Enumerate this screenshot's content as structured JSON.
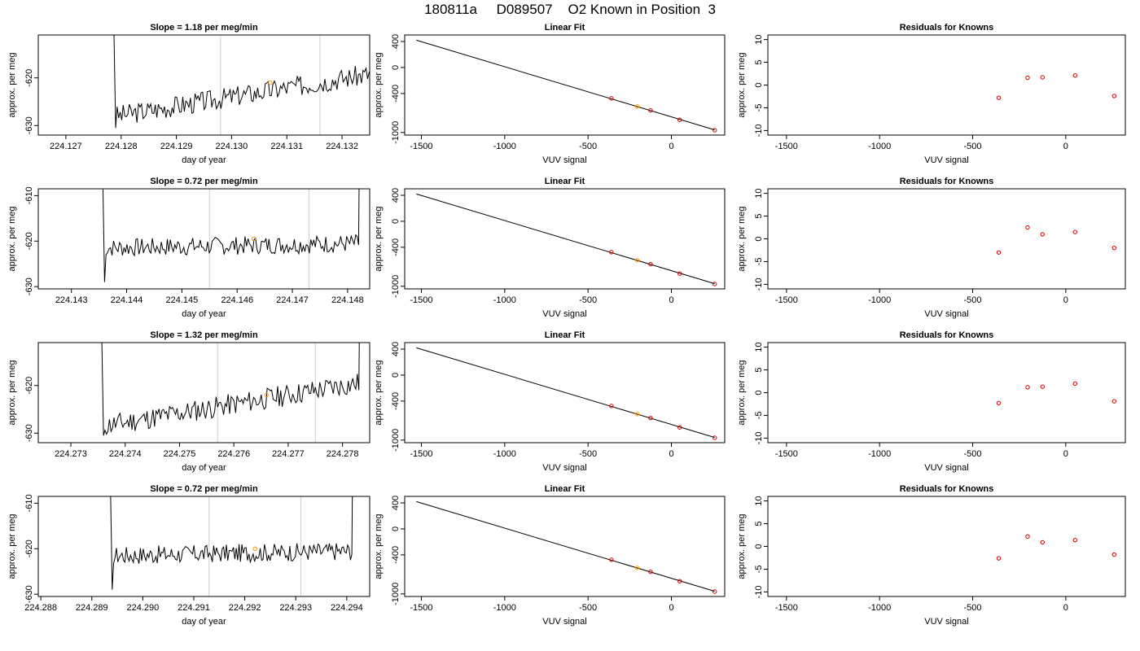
{
  "page": {
    "title": "180811a     D089507    O2 Known in Position  3",
    "colors": {
      "trace": "#000000",
      "gridline": "#cccccc",
      "highlight": "#ff9900",
      "known": "#cc0000"
    }
  },
  "chart_data": [
    {
      "type": "line",
      "title": "Slope =  1.18  per meg/min",
      "xlabel": "day of year",
      "ylabel": "approx. per meg",
      "xlim": [
        224.1265,
        224.1325
      ],
      "xticks": [
        "224.127",
        "224.128",
        "224.129",
        "224.130",
        "224.131",
        "224.132"
      ],
      "ylim": [
        -632,
        -611
      ],
      "yticks": [
        "-630",
        "-620"
      ],
      "trace": {
        "start": 224.1279,
        "end": 224.1326,
        "base_start": -628,
        "base_end": -619,
        "amp": 2.2,
        "seed": 3
      },
      "vlines": [
        224.1298,
        224.1316
      ],
      "marker": {
        "x": 224.1307,
        "y": -621
      }
    },
    {
      "type": "scatter",
      "title": "Linear Fit",
      "xlabel": "VUV signal",
      "ylabel": "approx. per meg",
      "xlim": [
        -1600,
        320
      ],
      "xticks": [
        -1500,
        -1000,
        -500,
        0
      ],
      "ylim": [
        -1040,
        500
      ],
      "yticks": [
        400,
        0,
        -400,
        -1000
      ],
      "fit_line": {
        "x": [
          -1530,
          260
        ],
        "y": [
          420,
          -960
        ]
      },
      "points": [
        {
          "x": -360,
          "y": -475
        },
        {
          "x": -205,
          "y": -600,
          "highlight": true
        },
        {
          "x": -125,
          "y": -660
        },
        {
          "x": 50,
          "y": -805
        },
        {
          "x": 260,
          "y": -965
        }
      ]
    },
    {
      "type": "scatter",
      "title": "Residuals for Knowns",
      "xlabel": "VUV signal",
      "ylabel": "approx. per meg",
      "xlim": [
        -1600,
        320
      ],
      "xticks": [
        -1500,
        -1000,
        -500,
        0
      ],
      "ylim": [
        -11,
        11
      ],
      "yticks": [
        10,
        5,
        0,
        -5,
        -10
      ],
      "points": [
        {
          "x": -360,
          "y": -2.8
        },
        {
          "x": -205,
          "y": 1.6
        },
        {
          "x": -125,
          "y": 1.7
        },
        {
          "x": 50,
          "y": 2.1
        },
        {
          "x": 260,
          "y": -2.4
        }
      ]
    },
    {
      "type": "line",
      "title": "Slope =  0.72  per meg/min",
      "xlabel": "day of year",
      "ylabel": "approx. per meg",
      "xlim": [
        224.1424,
        224.1484
      ],
      "xticks": [
        "224.143",
        "224.144",
        "224.145",
        "224.146",
        "224.147",
        "224.148"
      ],
      "ylim": [
        -630.5,
        -608.5
      ],
      "yticks": [
        "-610",
        "-620",
        "-630"
      ],
      "trace": {
        "start": 224.1436,
        "end": 224.1482,
        "base_start": -621.5,
        "base_end": -620.5,
        "amp": 2.0,
        "seed": 7
      },
      "vlines": [
        224.1455,
        224.1473
      ],
      "marker": {
        "x": 224.1463,
        "y": -619.5
      }
    },
    {
      "type": "scatter",
      "title": "Linear Fit",
      "xlabel": "VUV signal",
      "ylabel": "approx. per meg",
      "xlim": [
        -1600,
        320
      ],
      "xticks": [
        -1500,
        -1000,
        -500,
        0
      ],
      "ylim": [
        -1040,
        500
      ],
      "yticks": [
        400,
        0,
        -400,
        -1000
      ],
      "fit_line": {
        "x": [
          -1530,
          260
        ],
        "y": [
          420,
          -960
        ]
      },
      "points": [
        {
          "x": -360,
          "y": -475
        },
        {
          "x": -205,
          "y": -600,
          "highlight": true
        },
        {
          "x": -125,
          "y": -660
        },
        {
          "x": 50,
          "y": -805
        },
        {
          "x": 260,
          "y": -965
        }
      ]
    },
    {
      "type": "scatter",
      "title": "Residuals for Knowns",
      "xlabel": "VUV signal",
      "ylabel": "approx. per meg",
      "xlim": [
        -1600,
        320
      ],
      "xticks": [
        -1500,
        -1000,
        -500,
        0
      ],
      "ylim": [
        -11,
        11
      ],
      "yticks": [
        10,
        5,
        0,
        -5,
        -10
      ],
      "points": [
        {
          "x": -360,
          "y": -3.0
        },
        {
          "x": -205,
          "y": 2.5
        },
        {
          "x": -125,
          "y": 1.0
        },
        {
          "x": 50,
          "y": 1.5
        },
        {
          "x": 260,
          "y": -2.0
        }
      ]
    },
    {
      "type": "line",
      "title": "Slope =  1.32  per meg/min",
      "xlabel": "day of year",
      "ylabel": "approx. per meg",
      "xlim": [
        224.2724,
        224.2785
      ],
      "xticks": [
        "224.273",
        "224.274",
        "224.275",
        "224.276",
        "224.277",
        "224.278"
      ],
      "ylim": [
        -632,
        -611
      ],
      "yticks": [
        "-630",
        "-620"
      ],
      "trace": {
        "start": 224.2736,
        "end": 224.2783,
        "base_start": -628.5,
        "base_end": -619.5,
        "amp": 2.3,
        "seed": 11
      },
      "vlines": [
        224.2757,
        224.2775
      ],
      "marker": {
        "x": 224.2766,
        "y": -622
      }
    },
    {
      "type": "scatter",
      "title": "Linear Fit",
      "xlabel": "VUV signal",
      "ylabel": "approx. per meg",
      "xlim": [
        -1600,
        320
      ],
      "xticks": [
        -1500,
        -1000,
        -500,
        0
      ],
      "ylim": [
        -1040,
        500
      ],
      "yticks": [
        400,
        0,
        -400,
        -1000
      ],
      "fit_line": {
        "x": [
          -1530,
          260
        ],
        "y": [
          420,
          -960
        ]
      },
      "points": [
        {
          "x": -360,
          "y": -475
        },
        {
          "x": -205,
          "y": -600,
          "highlight": true
        },
        {
          "x": -125,
          "y": -660
        },
        {
          "x": 50,
          "y": -805
        },
        {
          "x": 260,
          "y": -965
        }
      ]
    },
    {
      "type": "scatter",
      "title": "Residuals for Knowns",
      "xlabel": "VUV signal",
      "ylabel": "approx. per meg",
      "xlim": [
        -1600,
        320
      ],
      "xticks": [
        -1500,
        -1000,
        -500,
        0
      ],
      "ylim": [
        -11,
        11
      ],
      "yticks": [
        10,
        5,
        0,
        -5,
        -10
      ],
      "points": [
        {
          "x": -360,
          "y": -2.3
        },
        {
          "x": -205,
          "y": 1.2
        },
        {
          "x": -125,
          "y": 1.3
        },
        {
          "x": 50,
          "y": 2.0
        },
        {
          "x": 260,
          "y": -1.9
        }
      ]
    },
    {
      "type": "line",
      "title": "Slope =  0.72  per meg/min",
      "xlabel": "day of year",
      "ylabel": "approx. per meg",
      "xlim": [
        224.28795,
        224.29445
      ],
      "xticks": [
        "224.288",
        "224.289",
        "224.290",
        "224.291",
        "224.292",
        "224.293",
        "224.294"
      ],
      "ylim": [
        -630.5,
        -608.5
      ],
      "yticks": [
        "-610",
        "-620",
        "-630"
      ],
      "trace": {
        "start": 224.2894,
        "end": 224.2941,
        "base_start": -621.5,
        "base_end": -620.5,
        "amp": 2.0,
        "seed": 17
      },
      "vlines": [
        224.2913,
        224.2931
      ],
      "marker": {
        "x": 224.2922,
        "y": -620
      }
    },
    {
      "type": "scatter",
      "title": "Linear Fit",
      "xlabel": "VUV signal",
      "ylabel": "approx. per meg",
      "xlim": [
        -1600,
        320
      ],
      "xticks": [
        -1500,
        -1000,
        -500,
        0
      ],
      "ylim": [
        -1040,
        500
      ],
      "yticks": [
        400,
        0,
        -400,
        -1000
      ],
      "fit_line": {
        "x": [
          -1530,
          260
        ],
        "y": [
          420,
          -960
        ]
      },
      "points": [
        {
          "x": -360,
          "y": -475
        },
        {
          "x": -205,
          "y": -600,
          "highlight": true
        },
        {
          "x": -125,
          "y": -660
        },
        {
          "x": 50,
          "y": -805
        },
        {
          "x": 260,
          "y": -965
        }
      ]
    },
    {
      "type": "scatter",
      "title": "Residuals for Knowns",
      "xlabel": "VUV signal",
      "ylabel": "approx. per meg",
      "xlim": [
        -1600,
        320
      ],
      "xticks": [
        -1500,
        -1000,
        -500,
        0
      ],
      "ylim": [
        -11,
        11
      ],
      "yticks": [
        10,
        5,
        0,
        -5,
        -10
      ],
      "points": [
        {
          "x": -360,
          "y": -2.6
        },
        {
          "x": -205,
          "y": 2.2
        },
        {
          "x": -125,
          "y": 0.9
        },
        {
          "x": 50,
          "y": 1.4
        },
        {
          "x": 260,
          "y": -1.8
        }
      ]
    }
  ]
}
